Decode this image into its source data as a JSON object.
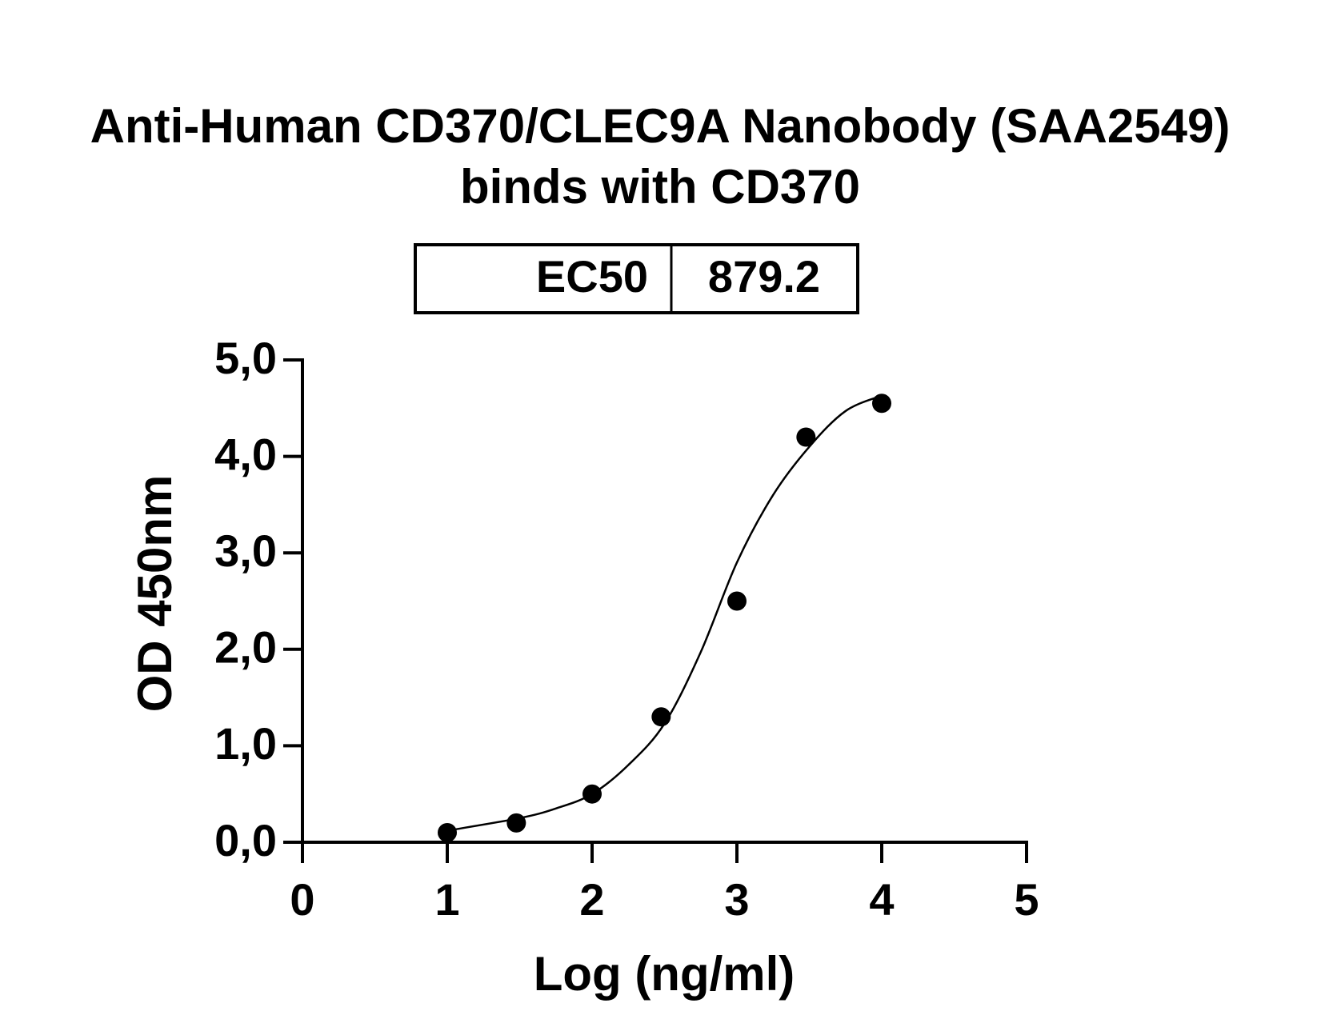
{
  "chart_data": {
    "type": "scatter",
    "title": [
      "Anti-Human CD370/CLEC9A Nanobody (SAA2549)",
      "binds with CD370"
    ],
    "annotation_table": {
      "label": "EC50",
      "value": "879.2"
    },
    "x_label": "Log (ng/ml)",
    "y_label": "OD 450nm",
    "xlim": [
      0,
      5
    ],
    "ylim": [
      0,
      5
    ],
    "xticks": [
      0,
      1,
      2,
      3,
      4,
      5
    ],
    "yticks": [
      {
        "value": 0,
        "label": "0,0"
      },
      {
        "value": 1,
        "label": "1,0"
      },
      {
        "value": 2,
        "label": "2,0"
      },
      {
        "value": 3,
        "label": "3,0"
      },
      {
        "value": 4,
        "label": "4,0"
      },
      {
        "value": 5,
        "label": "5,0"
      }
    ],
    "color": "#000000",
    "series": [
      {
        "x": [
          1,
          1.477,
          2,
          2.477,
          3,
          3.477,
          4
        ],
        "values": [
          0.1,
          0.2,
          0.5,
          1.3,
          2.5,
          4.2,
          4.55
        ]
      }
    ],
    "fit": {
      "x": [
        1,
        1.5,
        1.75,
        2,
        2.25,
        2.5,
        2.75,
        3,
        3.25,
        3.5,
        3.75,
        4
      ],
      "values": [
        0.12,
        0.25,
        0.35,
        0.5,
        0.8,
        1.23,
        1.97,
        2.9,
        3.6,
        4.1,
        4.47,
        4.63
      ]
    }
  }
}
